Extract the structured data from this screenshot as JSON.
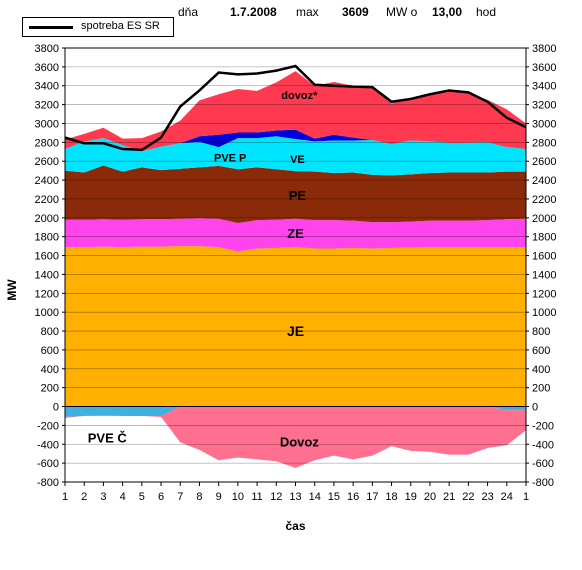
{
  "header": {
    "day_label": "dňa",
    "date": "1.7.2008",
    "max_label": "max",
    "max_value": "3609",
    "unit_label": "MW o",
    "hour": "13,00",
    "hour_unit": "hod"
  },
  "legend": {
    "line_label": "spotreba ES SR",
    "position": "top-left"
  },
  "chart_data": {
    "type": "area",
    "xlabel": "čas",
    "ylabel": "MW",
    "ylim": [
      -800,
      3800
    ],
    "y_ticks": [
      3800,
      3600,
      3400,
      3200,
      3000,
      2800,
      2600,
      2400,
      2200,
      2000,
      1800,
      1600,
      1400,
      1200,
      1000,
      800,
      600,
      400,
      200,
      0,
      -200,
      -400,
      -600,
      -800
    ],
    "x_tick_labels": [
      "1",
      "2",
      "3",
      "4",
      "5",
      "6",
      "7",
      "8",
      "9",
      "10",
      "11",
      "12",
      "13",
      "14",
      "15",
      "16",
      "17",
      "18",
      "19",
      "20",
      "21",
      "22",
      "23",
      "24",
      "1"
    ],
    "grid": true,
    "colors": {
      "JE": "#ffb000",
      "ZE": "#ff44ee",
      "PE": "#8b2a08",
      "VE": "#00e5ff",
      "PVE_P": "#0000dd",
      "dovoz_pos": "#ff3a50",
      "dovoz_neg": "#ff7090",
      "PVE_C": "#40b0e0",
      "consumption_line": "#000000"
    },
    "series": [
      {
        "name": "JE",
        "label": "JE",
        "values": [
          1690,
          1690,
          1695,
          1690,
          1695,
          1695,
          1700,
          1700,
          1690,
          1645,
          1675,
          1680,
          1690,
          1675,
          1675,
          1680,
          1675,
          1680,
          1685,
          1690,
          1690,
          1690,
          1690,
          1690,
          1690
        ]
      },
      {
        "name": "ZE",
        "label": "ZE",
        "values": [
          290,
          290,
          290,
          290,
          290,
          290,
          290,
          295,
          300,
          300,
          300,
          300,
          300,
          300,
          300,
          290,
          280,
          275,
          275,
          280,
          280,
          280,
          285,
          295,
          300
        ]
      },
      {
        "name": "PE",
        "label": "PE",
        "values": [
          520,
          500,
          570,
          510,
          550,
          520,
          530,
          540,
          560,
          570,
          560,
          535,
          505,
          515,
          500,
          510,
          500,
          495,
          500,
          505,
          510,
          510,
          505,
          505,
          500
        ]
      },
      {
        "name": "VE",
        "label": "VE",
        "values": [
          230,
          330,
          290,
          280,
          170,
          250,
          270,
          270,
          200,
          330,
          310,
          350,
          340,
          320,
          345,
          340,
          370,
          330,
          360,
          335,
          315,
          315,
          320,
          260,
          240
        ]
      },
      {
        "name": "PVE P",
        "label": "PVE P",
        "values": [
          0,
          0,
          0,
          0,
          0,
          0,
          0,
          60,
          130,
          60,
          60,
          60,
          100,
          30,
          60,
          30,
          0,
          0,
          0,
          0,
          0,
          0,
          0,
          0,
          0
        ]
      },
      {
        "name": "dovoz*",
        "label": "dovoz*",
        "values": [
          100,
          80,
          110,
          70,
          140,
          160,
          240,
          380,
          430,
          460,
          440,
          510,
          620,
          560,
          560,
          550,
          570,
          430,
          450,
          490,
          555,
          530,
          450,
          400,
          270
        ]
      },
      {
        "name": "PVE Č",
        "label": "PVE Č",
        "values": [
          -110,
          -100,
          -90,
          -100,
          -100,
          -100,
          0,
          0,
          0,
          0,
          0,
          0,
          0,
          0,
          0,
          0,
          0,
          0,
          0,
          0,
          0,
          0,
          0,
          -40,
          -40
        ]
      },
      {
        "name": "Dovoz",
        "label": "Dovoz",
        "values": [
          -10,
          0,
          -10,
          0,
          0,
          -10,
          -380,
          -460,
          -570,
          -540,
          -560,
          -580,
          -650,
          -570,
          -520,
          -560,
          -520,
          -420,
          -470,
          -480,
          -510,
          -510,
          -440,
          -370,
          -210
        ]
      },
      {
        "name": "spotreba ES SR",
        "values": [
          2850,
          2790,
          2790,
          2730,
          2720,
          2850,
          3180,
          3350,
          3540,
          3520,
          3530,
          3560,
          3609,
          3410,
          3400,
          3390,
          3385,
          3230,
          3260,
          3310,
          3350,
          3330,
          3230,
          3060,
          2960
        ]
      }
    ]
  }
}
